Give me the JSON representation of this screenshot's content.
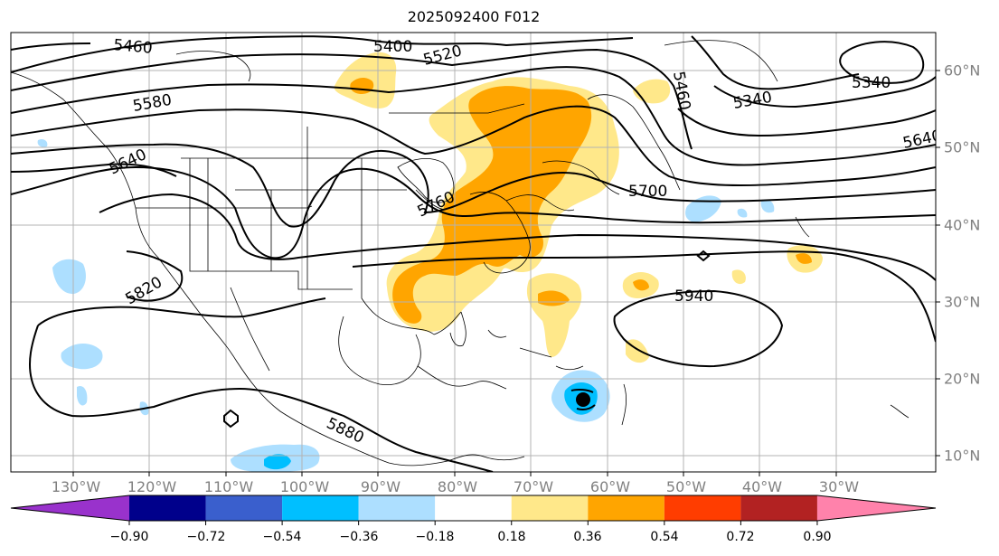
{
  "title": "2025092400 F012",
  "longitude_labels": [
    "130°W",
    "120°W",
    "110°W",
    "100°W",
    "90°W",
    "80°W",
    "70°W",
    "60°W",
    "50°W",
    "40°W",
    "30°W"
  ],
  "latitude_labels": [
    "60°N",
    "50°N",
    "40°N",
    "30°N",
    "20°N",
    "10°N"
  ],
  "contour_labels": [
    "5460",
    "5400",
    "5520",
    "5580",
    "5460",
    "5340",
    "5340",
    "5640",
    "5640",
    "5700",
    "5760",
    "5820",
    "5940",
    "5880"
  ],
  "colorbar": {
    "tick_labels": [
      "−0.90",
      "−0.72",
      "−0.54",
      "−0.36",
      "−0.18",
      "0.18",
      "0.36",
      "0.54",
      "0.72",
      "0.90"
    ],
    "colors": [
      "#9932CC",
      "#00008B",
      "#3A5FCD",
      "#00BFFF",
      "#ADDFFF",
      "#FFFFFF",
      "#FFE88A",
      "#FFA500",
      "#FF3D00",
      "#B22222",
      "#FF82AB"
    ]
  }
}
